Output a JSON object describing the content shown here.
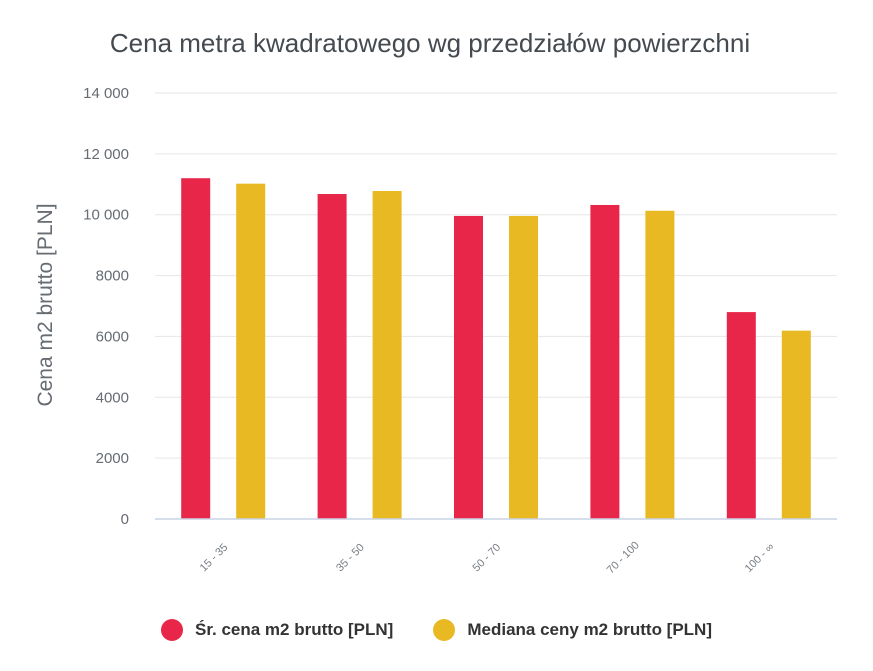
{
  "chart_data": {
    "type": "bar",
    "title": "Cena metra kwadratowego wg przedziałów powierzchni",
    "xlabel": "",
    "ylabel": "Cena m2 brutto [PLN]",
    "ylim": [
      0,
      14000
    ],
    "yticks": [
      {
        "value": 0,
        "label": "0"
      },
      {
        "value": 2000,
        "label": "2000"
      },
      {
        "value": 4000,
        "label": "4000"
      },
      {
        "value": 6000,
        "label": "6000"
      },
      {
        "value": 8000,
        "label": "8000"
      },
      {
        "value": 10000,
        "label": "10 000"
      },
      {
        "value": 12000,
        "label": "12 000"
      },
      {
        "value": 14000,
        "label": "14 000"
      }
    ],
    "grid": true,
    "legend_position": "bottom",
    "categories": [
      "15 - 35",
      "35 - 50",
      "50 - 70",
      "70 - 100",
      "100 - ∞"
    ],
    "series": [
      {
        "name": "Śr. cena m2 brutto [PLN]",
        "color": "#e8264a",
        "values": [
          11200,
          10680,
          9960,
          10320,
          6800
        ]
      },
      {
        "name": "Mediana ceny m2 brutto [PLN]",
        "color": "#e8b923",
        "values": [
          11020,
          10780,
          9960,
          10130,
          6190
        ]
      }
    ]
  }
}
